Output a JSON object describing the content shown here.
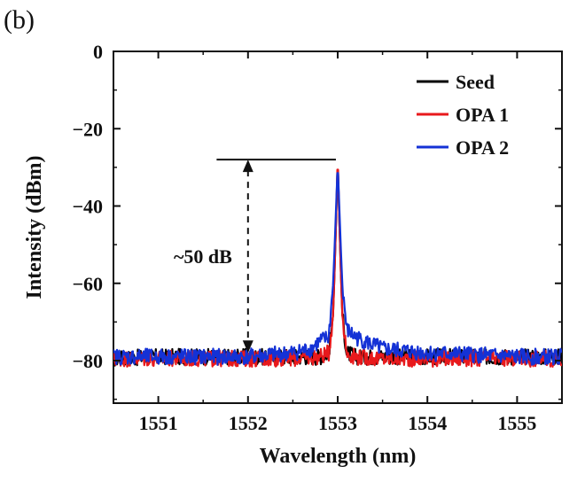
{
  "panel_label": "(b)",
  "chart_data": {
    "type": "line",
    "xlabel": "Wavelength (nm)",
    "ylabel": "Intensity (dBm)",
    "xlim": [
      1550.5,
      1555.5
    ],
    "ylim": [
      -91,
      0
    ],
    "x_ticks": [
      1551,
      1552,
      1553,
      1554,
      1555
    ],
    "y_ticks": [
      0,
      -20,
      -40,
      -60,
      -80
    ],
    "x_tick_labels": [
      "1551",
      "1552",
      "1553",
      "1554",
      "1555"
    ],
    "y_tick_labels": [
      "0",
      "−20",
      "−40",
      "−60",
      "−80"
    ],
    "grid": false,
    "legend_position": "top-right",
    "series": [
      {
        "name": "Seed",
        "color": "#000000",
        "x": [
          1550.5,
          1551.0,
          1551.5,
          1552.0,
          1552.5,
          1552.8,
          1552.9,
          1552.95,
          1552.98,
          1553.0,
          1553.02,
          1553.05,
          1553.1,
          1553.2,
          1553.5,
          1554.0,
          1554.5,
          1555.0,
          1555.5
        ],
        "y": [
          -79.5,
          -79,
          -79,
          -79,
          -79,
          -79,
          -78,
          -68,
          -45,
          -28,
          -45,
          -68,
          -78,
          -79,
          -79,
          -79,
          -79,
          -79,
          -79
        ]
      },
      {
        "name": "OPA 1",
        "color": "#e8191c",
        "x": [
          1550.5,
          1551.0,
          1551.5,
          1552.0,
          1552.5,
          1552.8,
          1552.9,
          1552.95,
          1552.98,
          1553.0,
          1553.02,
          1553.05,
          1553.1,
          1553.2,
          1553.5,
          1554.0,
          1554.5,
          1555.0,
          1555.5
        ],
        "y": [
          -79.5,
          -79.5,
          -79.5,
          -79.5,
          -79.5,
          -79,
          -78,
          -68,
          -45,
          -27,
          -45,
          -68,
          -78,
          -79,
          -79.5,
          -79.5,
          -79.5,
          -79.5,
          -79.5
        ]
      },
      {
        "name": "OPA 2",
        "color": "#1432d6",
        "x": [
          1550.5,
          1551.0,
          1551.5,
          1552.0,
          1552.5,
          1552.7,
          1552.8,
          1552.9,
          1552.95,
          1553.0,
          1553.05,
          1553.1,
          1553.2,
          1553.3,
          1553.5,
          1554.0,
          1554.5,
          1555.0,
          1555.5
        ],
        "y": [
          -79,
          -79,
          -79,
          -79,
          -78,
          -77,
          -75,
          -74,
          -60,
          -29,
          -60,
          -72,
          -74,
          -75,
          -77,
          -78,
          -78.5,
          -79,
          -79
        ]
      }
    ],
    "annotation": {
      "text": "~50 dB",
      "x": 1552.0,
      "y_top": -28,
      "y_bottom": -78,
      "line_x_start": 1551.65,
      "line_x_end": 1552.98
    }
  }
}
